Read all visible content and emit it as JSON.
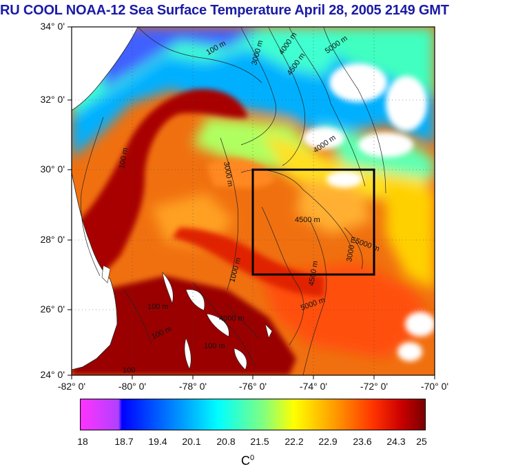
{
  "title": "RU COOL  NOAA-12 Sea Surface Temperature April 28, 2005 2149 GMT",
  "map": {
    "lat_labels": [
      "34° 0'",
      "32° 0'",
      "30° 0'",
      "28° 0'",
      "26° 0'",
      "24° 0'"
    ],
    "lon_labels": [
      "-82° 0'",
      "-80° 0'",
      "-78° 0'",
      "-76° 0'",
      "-74° 0'",
      "-72° 0'",
      "-70° 0'"
    ],
    "lat_range": [
      24,
      34
    ],
    "lon_range": [
      -82,
      -70
    ],
    "study_box": {
      "lon": [
        -76,
        -72
      ],
      "lat": [
        27,
        30
      ]
    },
    "contour_labels": [
      "100 m",
      "3000 m",
      "4000 m",
      "4500 m",
      "5000 m",
      "100",
      "1000 m"
    ]
  },
  "colorbar": {
    "ticks": [
      "18",
      "18.7",
      "19.4",
      "20.1",
      "20.8",
      "21.5",
      "22.2",
      "22.9",
      "23.6",
      "24.3",
      "25"
    ],
    "unit": "C",
    "unit_sup": "0",
    "colors": [
      "#ff33ff",
      "#0000ff",
      "#00a0ff",
      "#00ffff",
      "#80ff80",
      "#ffff00",
      "#ff9900",
      "#ff3300",
      "#cc0000",
      "#7a0000"
    ]
  }
}
